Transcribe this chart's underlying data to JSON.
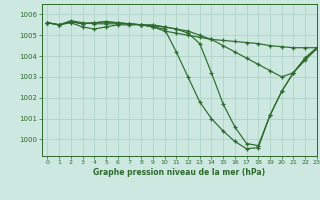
{
  "title": "Graphe pression niveau de la mer (hPa)",
  "background_color": "#cce8e0",
  "line_color": "#2d6a2d",
  "grid_color": "#aacfc4",
  "ylim": [
    999.2,
    1006.5
  ],
  "xlim": [
    -0.5,
    23
  ],
  "yticks": [
    1000,
    1001,
    1002,
    1003,
    1004,
    1005,
    1006
  ],
  "xticks": [
    0,
    1,
    2,
    3,
    4,
    5,
    6,
    7,
    8,
    9,
    10,
    11,
    12,
    13,
    14,
    15,
    16,
    17,
    18,
    19,
    20,
    21,
    22,
    23
  ],
  "series": [
    [
      1005.6,
      1005.5,
      1005.6,
      1005.4,
      1005.3,
      1005.4,
      1005.5,
      1005.5,
      1005.5,
      1005.4,
      1005.2,
      1005.1,
      1005.0,
      1004.9,
      1004.8,
      1004.75,
      1004.7,
      1004.65,
      1004.6,
      1004.5,
      1004.45,
      1004.4,
      1004.4,
      1004.4
    ],
    [
      1005.6,
      1005.5,
      1005.7,
      1005.6,
      1005.55,
      1005.55,
      1005.55,
      1005.55,
      1005.5,
      1005.45,
      1005.4,
      1005.3,
      1005.2,
      1005.0,
      1004.8,
      1004.5,
      1004.2,
      1003.9,
      1003.6,
      1003.3,
      1003.0,
      1003.2,
      1003.8,
      1004.35
    ],
    [
      1005.6,
      1005.5,
      1005.65,
      1005.55,
      1005.6,
      1005.65,
      1005.6,
      1005.55,
      1005.5,
      1005.5,
      1005.4,
      1005.3,
      1005.1,
      1004.6,
      1003.2,
      1001.7,
      1000.6,
      999.8,
      999.7,
      1001.15,
      1002.3,
      1003.2,
      1003.9,
      1004.4
    ],
    [
      1005.6,
      1005.5,
      1005.65,
      1005.55,
      1005.6,
      1005.65,
      1005.6,
      1005.55,
      1005.5,
      1005.4,
      1005.3,
      1004.2,
      1003.0,
      1001.8,
      1001.0,
      1000.4,
      999.9,
      999.55,
      999.6,
      1001.15,
      1002.3,
      1003.2,
      1003.9,
      1004.4
    ]
  ]
}
